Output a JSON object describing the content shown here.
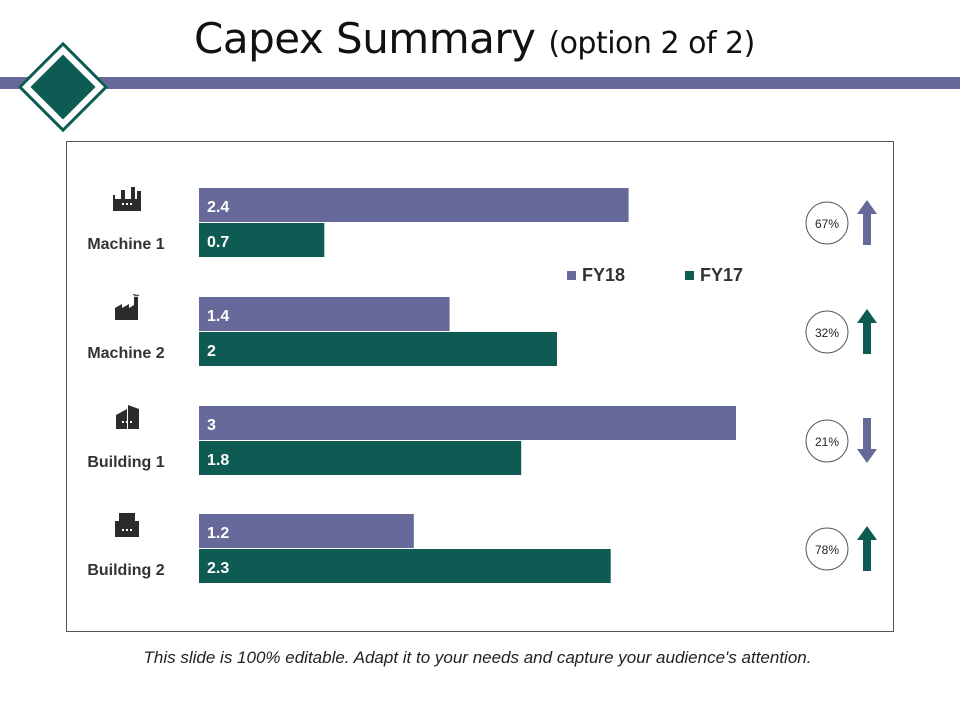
{
  "title": {
    "main": "Capex Summary",
    "sub": "(option 2 of 2)"
  },
  "footer": "This slide is 100% editable. Adapt it to your needs and capture your audience's attention.",
  "colors": {
    "fy18": "#67699a",
    "fy17": "#0d5b53",
    "header_bar": "#67699a",
    "diamond": "#0d5b53"
  },
  "chart_data": {
    "type": "bar",
    "orientation": "horizontal",
    "categories": [
      "Machine 1",
      "Machine 2",
      "Building 1",
      "Building 2"
    ],
    "category_icons": [
      "factory-icon",
      "factory-smoke-icon",
      "office-building-icon",
      "apartment-building-icon"
    ],
    "series": [
      {
        "name": "FY18",
        "values": [
          2.4,
          1.4,
          3,
          1.2
        ]
      },
      {
        "name": "FY17",
        "values": [
          0.7,
          2,
          1.8,
          2.3
        ]
      }
    ],
    "value_labels": {
      "FY18": [
        "2.4",
        "1.4",
        "3",
        "1.2"
      ],
      "FY17": [
        "0.7",
        "2",
        "1.8",
        "2.3"
      ]
    },
    "change_indicators": [
      {
        "label": "67%",
        "direction": "up",
        "color": "#67699a"
      },
      {
        "label": "32%",
        "direction": "up",
        "color": "#0d5b53"
      },
      {
        "label": "21%",
        "direction": "down",
        "color": "#67699a"
      },
      {
        "label": "78%",
        "direction": "up",
        "color": "#0d5b53"
      }
    ],
    "xlim": [
      0,
      3
    ],
    "legend": {
      "position": "top-right",
      "entries": [
        "FY18",
        "FY17"
      ]
    },
    "grid": false,
    "title": "",
    "xlabel": "",
    "ylabel": ""
  }
}
